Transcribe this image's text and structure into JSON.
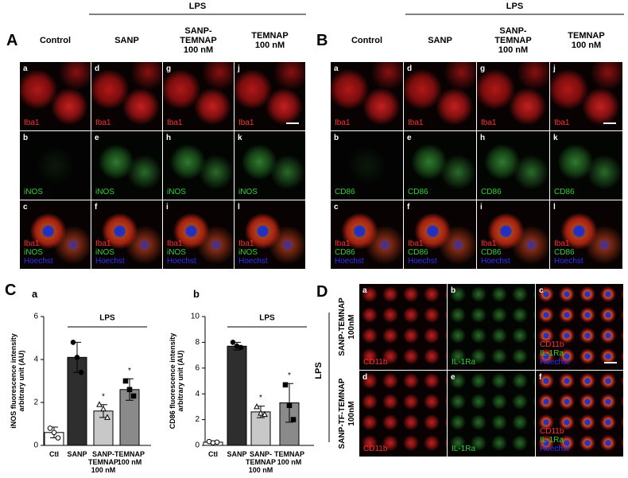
{
  "panel_a": {
    "letter": "A",
    "group_label": "LPS",
    "columns": [
      "Control",
      "SANP",
      "SANP-\nTEMNAP\n100 nM",
      "TEMNAP\n100 nM"
    ],
    "rows": [
      [
        {
          "letter": "a",
          "labels": [
            {
              "text": "Iba1",
              "color": "#ff3030"
            }
          ]
        },
        {
          "letter": "d",
          "labels": [
            {
              "text": "Iba1",
              "color": "#ff3030"
            }
          ]
        },
        {
          "letter": "g",
          "labels": [
            {
              "text": "Iba1",
              "color": "#ff3030"
            }
          ]
        },
        {
          "letter": "j",
          "labels": [
            {
              "text": "Iba1",
              "color": "#ff3030"
            }
          ]
        }
      ],
      [
        {
          "letter": "b",
          "labels": [
            {
              "text": "iNOS",
              "color": "#30d030"
            }
          ]
        },
        {
          "letter": "e",
          "labels": [
            {
              "text": "iNOS",
              "color": "#30d030"
            }
          ]
        },
        {
          "letter": "h",
          "labels": [
            {
              "text": "iNOS",
              "color": "#30d030"
            }
          ]
        },
        {
          "letter": "k",
          "labels": [
            {
              "text": "iNOS",
              "color": "#30d030"
            }
          ]
        }
      ],
      [
        {
          "letter": "c",
          "labels": [
            {
              "text": "Iba1",
              "color": "#ff3030"
            },
            {
              "text": "iNOS",
              "color": "#30d030"
            },
            {
              "text": "Hoechst",
              "color": "#3030ff"
            }
          ]
        },
        {
          "letter": "f",
          "labels": [
            {
              "text": "Iba1",
              "color": "#ff3030"
            },
            {
              "text": "iNOS",
              "color": "#30d030"
            },
            {
              "text": "Hoechst",
              "color": "#3030ff"
            }
          ]
        },
        {
          "letter": "i",
          "labels": [
            {
              "text": "Iba1",
              "color": "#ff3030"
            },
            {
              "text": "iNOS",
              "color": "#30d030"
            },
            {
              "text": "Hoechst",
              "color": "#3030ff"
            }
          ]
        },
        {
          "letter": "l",
          "labels": [
            {
              "text": "Iba1",
              "color": "#ff3030"
            },
            {
              "text": "iNOS",
              "color": "#30d030"
            },
            {
              "text": "Hoechst",
              "color": "#3030ff"
            }
          ]
        }
      ]
    ]
  },
  "panel_b": {
    "letter": "B",
    "group_label": "LPS",
    "columns": [
      "Control",
      "SANP",
      "SANP-\nTEMNAP\n100 nM",
      "TEMNAP\n100 nM"
    ],
    "rows": [
      [
        {
          "letter": "a",
          "labels": [
            {
              "text": "Iba1",
              "color": "#ff3030"
            }
          ]
        },
        {
          "letter": "d",
          "labels": [
            {
              "text": "Iba1",
              "color": "#ff3030"
            }
          ]
        },
        {
          "letter": "g",
          "labels": [
            {
              "text": "Iba1",
              "color": "#ff3030"
            }
          ]
        },
        {
          "letter": "j",
          "labels": [
            {
              "text": "Iba1",
              "color": "#ff3030"
            }
          ]
        }
      ],
      [
        {
          "letter": "b",
          "labels": [
            {
              "text": "CD86",
              "color": "#30d030"
            }
          ]
        },
        {
          "letter": "e",
          "labels": [
            {
              "text": "CD86",
              "color": "#30d030"
            }
          ]
        },
        {
          "letter": "h",
          "labels": [
            {
              "text": "CD86",
              "color": "#30d030"
            }
          ]
        },
        {
          "letter": "k",
          "labels": [
            {
              "text": "CD86",
              "color": "#30d030"
            }
          ]
        }
      ],
      [
        {
          "letter": "c",
          "labels": [
            {
              "text": "Iba1",
              "color": "#ff3030"
            },
            {
              "text": "CD86",
              "color": "#30d030"
            },
            {
              "text": "Hoechst",
              "color": "#3030ff"
            }
          ]
        },
        {
          "letter": "f",
          "labels": [
            {
              "text": "Iba1",
              "color": "#ff3030"
            },
            {
              "text": "CD86",
              "color": "#30d030"
            },
            {
              "text": "Hoechst",
              "color": "#3030ff"
            }
          ]
        },
        {
          "letter": "i",
          "labels": [
            {
              "text": "Iba1",
              "color": "#ff3030"
            },
            {
              "text": "CD86",
              "color": "#30d030"
            },
            {
              "text": "Hoechst",
              "color": "#3030ff"
            }
          ]
        },
        {
          "letter": "l",
          "labels": [
            {
              "text": "Iba1",
              "color": "#ff3030"
            },
            {
              "text": "CD86",
              "color": "#30d030"
            },
            {
              "text": "Hoechst",
              "color": "#3030ff"
            }
          ]
        }
      ]
    ]
  },
  "panel_c": {
    "letter": "C"
  },
  "chart_data": [
    {
      "type": "bar",
      "subtitle": "a",
      "ylabel": "iNOS fluorescence intensity\narbitrary unit (AU)",
      "group_label": "LPS",
      "categories": [
        "Ctl",
        "SANP",
        "SANP-\nTEMNAP\n100 nM",
        "TEMNAP\n100 nM"
      ],
      "values": [
        0.6,
        4.1,
        1.6,
        2.6
      ],
      "errors": [
        0.25,
        0.7,
        0.3,
        0.5
      ],
      "points": [
        [
          0.8,
          0.6,
          0.35
        ],
        [
          4.8,
          4.1,
          3.4
        ],
        [
          1.9,
          1.7,
          1.3
        ],
        [
          3.0,
          2.6,
          2.3
        ]
      ],
      "colors": [
        "#ffffff",
        "#2e2e2e",
        "#c8c8c8",
        "#8a8a8a"
      ],
      "markers": [
        {
          "shape": "circle",
          "fill": "#ffffff"
        },
        {
          "shape": "circle",
          "fill": "#000000"
        },
        {
          "shape": "triangle",
          "fill": "#ffffff"
        },
        {
          "shape": "square",
          "fill": "#000000"
        }
      ],
      "annotations": [
        {
          "text": "*",
          "category": "SANP-\nTEMNAP\n100 nM"
        },
        {
          "text": "*",
          "category": "TEMNAP\n100 nM"
        }
      ],
      "ylim": [
        0,
        6
      ],
      "yticks": [
        0,
        2,
        4,
        6
      ]
    },
    {
      "type": "bar",
      "subtitle": "b",
      "ylabel": "CD86 fluorescence intensity\narbitrary unit (AU)",
      "group_label": "LPS",
      "categories": [
        "Ctl",
        "SANP",
        "SANP-\nTEMNAP\n100 nM",
        "TEMNAP\n100 nM"
      ],
      "values": [
        0.25,
        7.7,
        2.6,
        3.3
      ],
      "errors": [
        0.1,
        0.3,
        0.45,
        1.5
      ],
      "points": [
        [
          0.3,
          0.2,
          0.25
        ],
        [
          8.0,
          7.7,
          7.6
        ],
        [
          3.0,
          2.5,
          2.4
        ],
        [
          4.7,
          3.1,
          2.0
        ]
      ],
      "colors": [
        "#ffffff",
        "#2e2e2e",
        "#c8c8c8",
        "#8a8a8a"
      ],
      "markers": [
        {
          "shape": "circle",
          "fill": "#ffffff"
        },
        {
          "shape": "circle",
          "fill": "#000000"
        },
        {
          "shape": "triangle",
          "fill": "#ffffff"
        },
        {
          "shape": "square",
          "fill": "#000000"
        }
      ],
      "annotations": [
        {
          "text": "*",
          "category": "SANP-\nTEMNAP\n100 nM"
        },
        {
          "text": "*",
          "category": "TEMNAP\n100 nM"
        }
      ],
      "ylim": [
        0,
        10
      ],
      "yticks": [
        0,
        2,
        4,
        6,
        8,
        10
      ]
    }
  ],
  "panel_d": {
    "letter": "D",
    "group_label": "LPS",
    "row_labels": [
      "SANP-TEMNAP\n100nM",
      "SANP-TF-TEMNAP\n100nM"
    ],
    "rows": [
      [
        {
          "letter": "a",
          "labels": [
            {
              "text": "CD11b",
              "color": "#ff3030"
            }
          ]
        },
        {
          "letter": "b",
          "labels": [
            {
              "text": "IL-1Ra",
              "color": "#30d030"
            }
          ]
        },
        {
          "letter": "c",
          "labels": [
            {
              "text": "CD11b",
              "color": "#ff3030"
            },
            {
              "text": "IL-1Ra",
              "color": "#30d030"
            },
            {
              "text": "Hoechst",
              "color": "#3030ff"
            }
          ]
        }
      ],
      [
        {
          "letter": "d",
          "labels": [
            {
              "text": "CD11b",
              "color": "#ff3030"
            }
          ]
        },
        {
          "letter": "e",
          "labels": [
            {
              "text": "IL-1Ra",
              "color": "#30d030"
            }
          ]
        },
        {
          "letter": "f",
          "labels": [
            {
              "text": "CD11b",
              "color": "#ff3030"
            },
            {
              "text": "IL-1Ra",
              "color": "#30d030"
            },
            {
              "text": "Hoechst",
              "color": "#3030ff"
            }
          ]
        }
      ]
    ]
  }
}
